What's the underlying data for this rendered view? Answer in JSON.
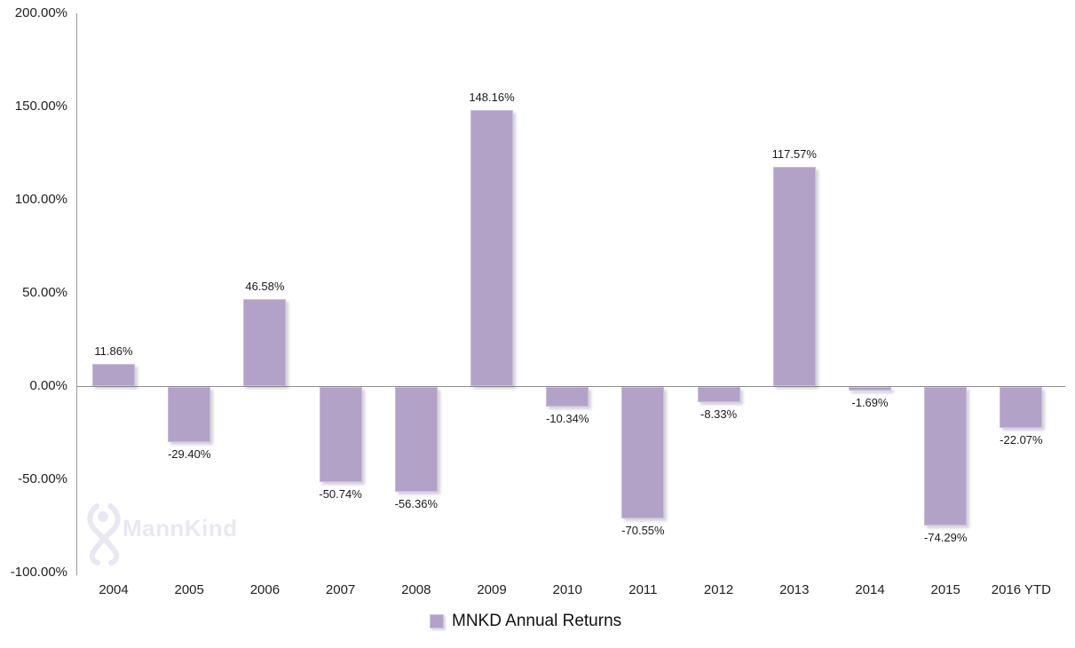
{
  "chart_data": {
    "type": "bar",
    "title": "",
    "xlabel": "",
    "ylabel": "",
    "categories": [
      "2004",
      "2005",
      "2006",
      "2007",
      "2008",
      "2009",
      "2010",
      "2011",
      "2012",
      "2013",
      "2014",
      "2015",
      "2016 YTD"
    ],
    "values": [
      11.86,
      -29.4,
      46.58,
      -50.74,
      -56.36,
      148.16,
      -10.34,
      -70.55,
      -8.33,
      117.57,
      -1.69,
      -74.29,
      -22.07
    ],
    "labels": [
      "11.86%",
      "-29.40%",
      "46.58%",
      "-50.74%",
      "-56.36%",
      "148.16%",
      "-10.34%",
      "-70.55%",
      "-8.33%",
      "117.57%",
      "-1.69%",
      "-74.29%",
      "-22.07%"
    ],
    "series_name": "MNKD Annual Returns",
    "ylim": [
      -100,
      200
    ],
    "y_ticks": [
      {
        "label": "200.00%",
        "value": 200
      },
      {
        "label": "150.00%",
        "value": 150
      },
      {
        "label": "100.00%",
        "value": 100
      },
      {
        "label": "50.00%",
        "value": 50
      },
      {
        "label": "0.00%",
        "value": 0
      },
      {
        "label": "-50.00%",
        "value": -50
      },
      {
        "label": "-100.00%",
        "value": -100
      }
    ],
    "grid": false,
    "legend_position": "bottom",
    "bar_color": "#b2a2c7"
  },
  "legend": {
    "label": "MNKD Annual Returns",
    "swatch_color": "#b2a2c7"
  },
  "watermark": {
    "text": "MannKind"
  },
  "colors": {
    "bar_fill": "#b2a2c7",
    "bar_border": "#c9bdd8",
    "axis_line": "#8c8c8c",
    "label_text": "#1a1a1a",
    "watermark": "#e9e8f2"
  }
}
